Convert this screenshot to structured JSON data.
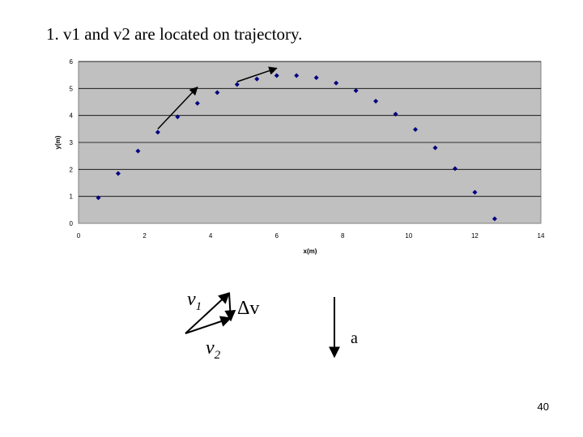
{
  "slide": {
    "title": "1. v1 and v2 are located on trajectory.",
    "page_number": "40"
  },
  "colors": {
    "plot_bg": "#c0c0c0",
    "marker": "#000080",
    "grid": "#000000"
  },
  "chart_data": {
    "type": "scatter",
    "xlabel": "x(m)",
    "ylabel": "y(m)",
    "xlim": [
      0,
      14
    ],
    "ylim": [
      0,
      6
    ],
    "xticks": [
      0,
      2,
      4,
      6,
      8,
      10,
      12,
      14
    ],
    "yticks": [
      0,
      1,
      2,
      3,
      4,
      5,
      6
    ],
    "grid": true,
    "legend": "none",
    "series": [
      {
        "x": [
          0.6,
          1.2,
          1.8,
          2.4,
          3.0,
          3.6,
          4.2,
          4.8,
          5.4,
          6.0,
          6.6,
          7.2,
          7.8,
          8.4,
          9.0,
          9.6,
          10.2,
          10.8,
          11.4,
          12.0,
          12.6
        ],
        "y": [
          0.95,
          1.85,
          2.68,
          3.38,
          3.95,
          4.45,
          4.85,
          5.15,
          5.35,
          5.48,
          5.48,
          5.4,
          5.2,
          4.92,
          4.53,
          4.05,
          3.48,
          2.8,
          2.03,
          1.15,
          0.17
        ]
      }
    ],
    "annotations": [
      {
        "type": "arrow",
        "from": [
          2.4,
          3.5
        ],
        "to": [
          3.6,
          5.05
        ]
      },
      {
        "type": "arrow",
        "from": [
          4.8,
          5.25
        ],
        "to": [
          6.0,
          5.75
        ]
      }
    ]
  },
  "diagram": {
    "v1_symbol": "v",
    "v1_subscript": "1",
    "v2_symbol": "v",
    "v2_subscript": "2",
    "delta_v_label": "Δv",
    "acceleration_label": "a"
  }
}
